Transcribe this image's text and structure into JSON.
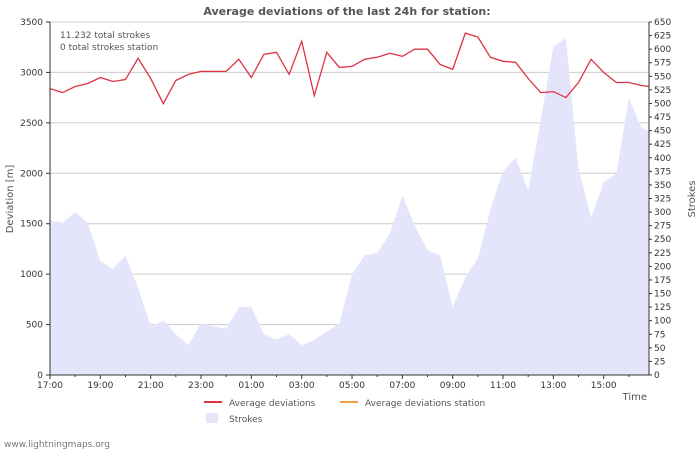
{
  "chart_data": {
    "type": "line",
    "title": "Average deviations of the last 24h for station:",
    "annotations": [
      "11.232 total strokes",
      "0 total strokes station"
    ],
    "xlabel": "Time",
    "ylabel_left": "Deviation  [m]",
    "ylabel_right": "Strokes",
    "x_tick_labels": [
      "17:00",
      "19:00",
      "21:00",
      "23:00",
      "01:00",
      "03:00",
      "05:00",
      "07:00",
      "09:00",
      "11:00",
      "13:00",
      "15:00"
    ],
    "x_range_hours": [
      0,
      23.8
    ],
    "y_left_range": [
      0,
      3500
    ],
    "y_left_ticks": [
      0,
      500,
      1000,
      1500,
      2000,
      2500,
      3000,
      3500
    ],
    "y_right_range": [
      0,
      650
    ],
    "y_right_ticks": [
      0,
      25,
      50,
      75,
      100,
      125,
      150,
      175,
      200,
      225,
      250,
      275,
      300,
      325,
      350,
      375,
      400,
      425,
      450,
      475,
      500,
      525,
      550,
      575,
      600,
      625,
      650
    ],
    "grid": true,
    "legend": [
      "Average deviations",
      "Average deviations station",
      "Strokes"
    ],
    "colors": {
      "deviation": "#dd3344",
      "station": "#f0a040",
      "strokes": "#e4e4fb",
      "grid": "#cccccc"
    },
    "series": [
      {
        "name": "Average deviations",
        "axis": "left",
        "x": [
          0,
          0.5,
          1,
          1.5,
          2,
          2.5,
          3,
          3.5,
          4,
          4.5,
          5,
          5.5,
          6,
          6.5,
          7,
          7.5,
          8,
          8.5,
          9,
          9.5,
          10,
          10.5,
          11,
          11.5,
          12,
          12.5,
          13,
          13.5,
          14,
          14.5,
          15,
          15.5,
          16,
          16.5,
          17,
          17.5,
          18,
          18.5,
          19,
          19.5,
          20,
          20.5,
          21,
          21.5,
          22,
          22.5,
          23,
          23.5,
          23.8
        ],
        "values": [
          2840,
          2800,
          2860,
          2890,
          2950,
          2910,
          2930,
          3140,
          2940,
          2690,
          2920,
          2980,
          3010,
          3010,
          3010,
          3130,
          2950,
          3180,
          3200,
          2980,
          3310,
          2770,
          3200,
          3050,
          3060,
          3130,
          3150,
          3190,
          3160,
          3230,
          3230,
          3080,
          3030,
          3390,
          3350,
          3150,
          3110,
          3100,
          2940,
          2800,
          2810,
          2750,
          2900,
          3130,
          3000,
          2900,
          2900,
          2870,
          2860
        ]
      },
      {
        "name": "Average deviations station",
        "axis": "left",
        "x": [],
        "values": []
      },
      {
        "name": "Strokes",
        "axis": "right",
        "x": [
          0,
          0.5,
          1,
          1.5,
          2,
          2.5,
          3,
          3.5,
          4,
          4.5,
          5,
          5.5,
          6,
          6.5,
          7,
          7.5,
          8,
          8.5,
          9,
          9.5,
          10,
          10.5,
          11,
          11.5,
          12,
          12.5,
          13,
          13.5,
          14,
          14.5,
          15,
          15.5,
          16,
          16.5,
          17,
          17.5,
          18,
          18.5,
          19,
          19.5,
          20,
          20.5,
          21,
          21.5,
          22,
          22.5,
          23,
          23.5,
          23.8
        ],
        "values": [
          285,
          280,
          300,
          280,
          210,
          195,
          220,
          160,
          90,
          100,
          75,
          55,
          95,
          90,
          85,
          125,
          125,
          75,
          65,
          75,
          55,
          65,
          80,
          95,
          185,
          220,
          225,
          260,
          330,
          275,
          230,
          220,
          125,
          180,
          215,
          305,
          375,
          400,
          340,
          470,
          605,
          620,
          380,
          290,
          355,
          370,
          510,
          455,
          450
        ]
      }
    ]
  },
  "credit": "www.lightningmaps.org"
}
